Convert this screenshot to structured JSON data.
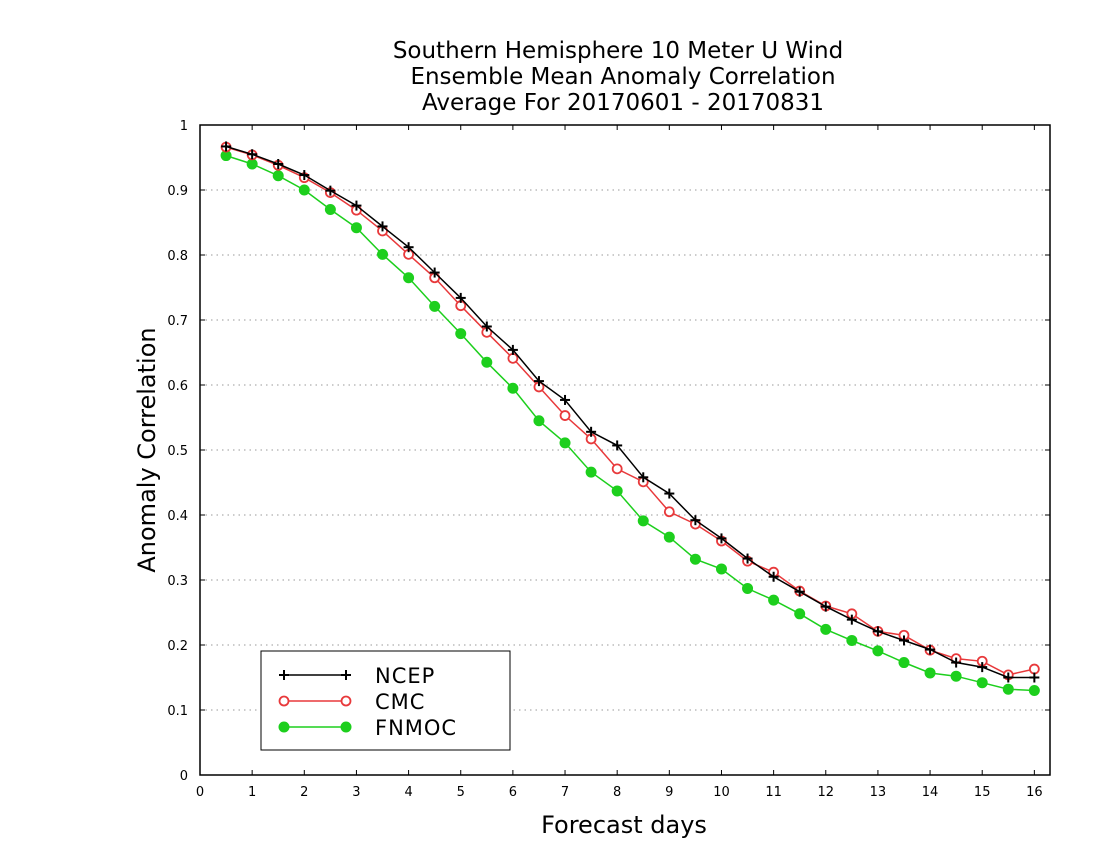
{
  "chart_data": {
    "type": "line",
    "title": [
      "Southern Hemisphere 10 Meter U Wind",
      "Ensemble Mean Anomaly Correlation",
      "Average For 20170601 - 20170831"
    ],
    "xlabel": "Forecast days",
    "ylabel": "Anomaly Correlation",
    "xlim": [
      0,
      16.3
    ],
    "ylim": [
      0,
      1
    ],
    "x_ticks": [
      "0",
      "1",
      "2",
      "3",
      "4",
      "5",
      "6",
      "7",
      "8",
      "9",
      "10",
      "11",
      "12",
      "13",
      "14",
      "15",
      "16"
    ],
    "y_ticks": [
      "0",
      "0.1",
      "0.2",
      "0.3",
      "0.4",
      "0.5",
      "0.6",
      "0.7",
      "0.8",
      "0.9",
      "1"
    ],
    "grid": "horizontal-dotted",
    "legend_placement": "bottom-left",
    "x": [
      0.5,
      1,
      1.5,
      2,
      2.5,
      3,
      3.5,
      4,
      4.5,
      5,
      5.5,
      6,
      6.5,
      7,
      7.5,
      8,
      8.5,
      9,
      9.5,
      10,
      10.5,
      11,
      11.5,
      12,
      12.5,
      13,
      13.5,
      14,
      14.5,
      15,
      15.5,
      16
    ],
    "series": [
      {
        "name": "NCEP",
        "color": "#000000",
        "marker": "plus",
        "values": [
          0.967,
          0.955,
          0.94,
          0.923,
          0.899,
          0.876,
          0.844,
          0.812,
          0.773,
          0.734,
          0.69,
          0.654,
          0.606,
          0.577,
          0.528,
          0.507,
          0.458,
          0.433,
          0.392,
          0.364,
          0.333,
          0.305,
          0.282,
          0.259,
          0.239,
          0.221,
          0.207,
          0.193,
          0.173,
          0.166,
          0.15,
          0.15
        ]
      },
      {
        "name": "CMC",
        "color": "#e8393b",
        "marker": "open-circle",
        "values": [
          0.966,
          0.954,
          0.938,
          0.919,
          0.896,
          0.869,
          0.837,
          0.801,
          0.765,
          0.722,
          0.681,
          0.641,
          0.597,
          0.553,
          0.517,
          0.471,
          0.451,
          0.405,
          0.386,
          0.36,
          0.329,
          0.312,
          0.283,
          0.26,
          0.248,
          0.221,
          0.215,
          0.192,
          0.179,
          0.175,
          0.154,
          0.163
        ]
      },
      {
        "name": "FNMOC",
        "color": "#1dcf1d",
        "marker": "filled-circle",
        "values": [
          0.953,
          0.94,
          0.922,
          0.9,
          0.87,
          0.842,
          0.801,
          0.765,
          0.721,
          0.679,
          0.635,
          0.595,
          0.545,
          0.511,
          0.466,
          0.437,
          0.391,
          0.366,
          0.332,
          0.317,
          0.287,
          0.269,
          0.248,
          0.224,
          0.207,
          0.191,
          0.173,
          0.157,
          0.152,
          0.142,
          0.132,
          0.13
        ]
      }
    ]
  }
}
